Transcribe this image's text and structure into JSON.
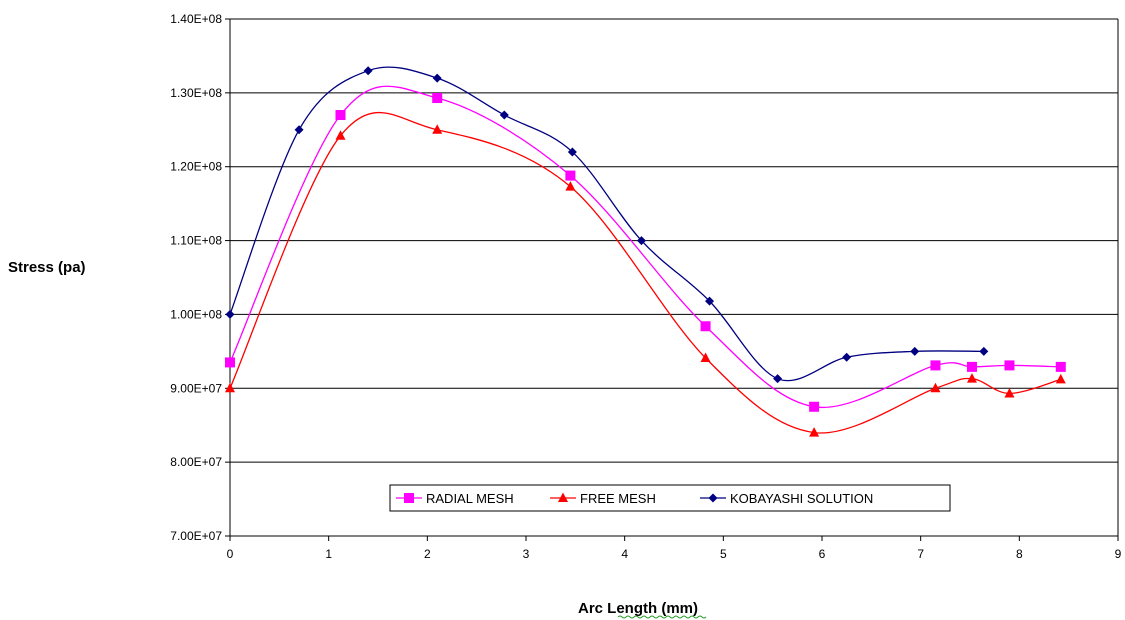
{
  "chart_data": {
    "type": "line",
    "title": "",
    "xlabel": "Arc Length  (mm)",
    "ylabel": "Stress (pa)",
    "xlim": [
      0,
      9
    ],
    "ylim": [
      70000000,
      140000000
    ],
    "x_ticks": [
      "0",
      "1",
      "2",
      "3",
      "4",
      "5",
      "6",
      "7",
      "8",
      "9"
    ],
    "y_ticks": [
      "7.00E+07",
      "8.00E+07",
      "9.00E+07",
      "1.00E+08",
      "1.10E+08",
      "1.20E+08",
      "1.30E+08",
      "1.40E+08"
    ],
    "grid": "horizontal",
    "legend_position": "bottom-center",
    "series": [
      {
        "name": "RADIAL MESH",
        "color": "#ff00ff",
        "marker": "square",
        "x": [
          0,
          1.12,
          2.1,
          3.45,
          4.82,
          5.92,
          7.15,
          7.52,
          7.9,
          8.42
        ],
        "y": [
          93500000,
          127000000,
          129300000,
          118800000,
          98400000,
          87500000,
          93100000,
          92900000,
          93100000,
          92900000
        ]
      },
      {
        "name": "FREE MESH",
        "color": "#ff0000",
        "marker": "triangle",
        "x": [
          0,
          1.12,
          2.1,
          3.45,
          4.82,
          5.92,
          7.15,
          7.52,
          7.9,
          8.42
        ],
        "y": [
          90000000,
          124200000,
          125000000,
          117300000,
          94100000,
          84000000,
          90000000,
          91300000,
          89300000,
          91200000
        ]
      },
      {
        "name": "KOBAYASHI SOLUTION",
        "color": "#000080",
        "marker": "diamond",
        "x": [
          0,
          0.7,
          1.4,
          2.1,
          2.78,
          3.47,
          4.17,
          4.86,
          5.55,
          6.25,
          6.94,
          7.64
        ],
        "y": [
          100000000,
          125000000,
          133000000,
          132000000,
          127000000,
          122000000,
          110000000,
          101800000,
          91300000,
          94200000,
          95000000,
          95000000
        ]
      }
    ]
  }
}
